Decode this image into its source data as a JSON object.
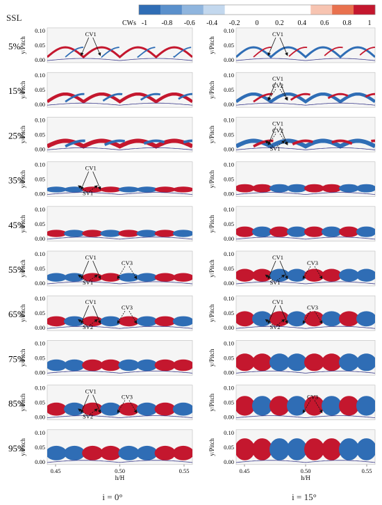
{
  "figure": {
    "row_header": "SSL",
    "colorbar": {
      "label": "CWs",
      "ticks": [
        "-1",
        "-0.8",
        "-0.6",
        "-0.4",
        "-0.2",
        "0",
        "0.2",
        "0.4",
        "0.6",
        "0.8",
        "1"
      ],
      "colors": [
        "#2f6db5",
        "#5a90cc",
        "#8fb5de",
        "#c3d8ee",
        "#ffffff",
        "#ffffff",
        "#ffffff",
        "#ffffff",
        "#f7c4b1",
        "#e9714e",
        "#c4172e"
      ]
    },
    "colors": {
      "positive": "#c4172e",
      "negative": "#2f6db5",
      "background": "#f5f5f5"
    },
    "y_axis_label": "y/Pitch",
    "y_ticks": [
      "0.10",
      "0.05",
      "0.00"
    ],
    "x_axis_label": "h/H",
    "x_ticks": [
      "0.45",
      "0.50",
      "0.55"
    ],
    "columns": [
      {
        "label": "i = 0°"
      },
      {
        "label": "i = 15°"
      }
    ],
    "rows": [
      {
        "ssl": "5%",
        "left": [
          "CV1"
        ],
        "right": [
          "CV1"
        ]
      },
      {
        "ssl": "15%",
        "left": [],
        "right": [
          "CV1",
          "CV2"
        ]
      },
      {
        "ssl": "25%",
        "left": [],
        "right": [
          "CV1",
          "CV2",
          "SV1"
        ]
      },
      {
        "ssl": "35%",
        "left": [
          "CV1",
          "SV1"
        ],
        "right": []
      },
      {
        "ssl": "45%",
        "left": [],
        "right": []
      },
      {
        "ssl": "55%",
        "left": [
          "CV1",
          "CV3",
          "SV1"
        ],
        "right": [
          "CV1",
          "CV3",
          "SV1"
        ]
      },
      {
        "ssl": "65%",
        "left": [
          "CV1",
          "CV3",
          "SV2"
        ],
        "right": [
          "CV1",
          "CV3",
          "SV2"
        ]
      },
      {
        "ssl": "75%",
        "left": [],
        "right": []
      },
      {
        "ssl": "85%",
        "left": [
          "CV1",
          "CV3",
          "SV2"
        ],
        "right": [
          "CV3"
        ]
      },
      {
        "ssl": "95%",
        "left": [],
        "right": []
      }
    ]
  }
}
